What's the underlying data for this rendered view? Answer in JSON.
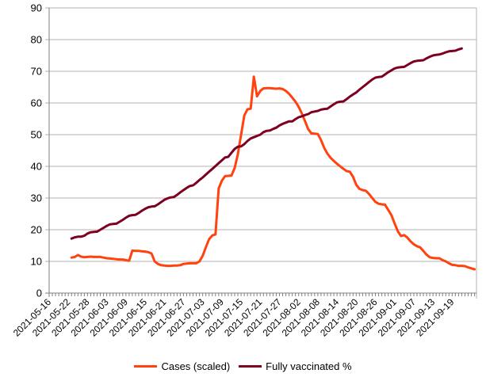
{
  "chart_data": {
    "type": "line",
    "title": "",
    "x_axis": {
      "tick_labels": [
        "2021-05-16",
        "2021-05-22",
        "2021-05-28",
        "2021-06-03",
        "2021-06-09",
        "2021-06-15",
        "2021-06-21",
        "2021-06-27",
        "2021-07-03",
        "2021-07-09",
        "2021-07-15",
        "2021-07-21",
        "2021-07-27",
        "2021-08-02",
        "2021-08-08",
        "2021-08-14",
        "2021-08-20",
        "2021-08-26",
        "2021-09-01",
        "2021-09-07",
        "2021-09-13",
        "2021-09-19"
      ],
      "label_step_days": 6,
      "minor_ticks_daily": true,
      "day_range": [
        0,
        133.6
      ]
    },
    "y_axis": {
      "min": 0,
      "max": 90,
      "step": 10,
      "tick_labels": [
        "0",
        "10",
        "20",
        "30",
        "40",
        "50",
        "60",
        "70",
        "80",
        "90"
      ]
    },
    "grid": true,
    "legend": {
      "position": "bottom"
    },
    "colors": {
      "cases": "#FF420E",
      "vaccinated": "#7E0021",
      "gridline": "#b3b3b3",
      "axis": "#808080",
      "text": "#000000",
      "background": "#ffffff"
    },
    "series": [
      {
        "name": "Cases (scaled)",
        "color": "#FF420E",
        "start_day": 7,
        "step_days": 1,
        "values": [
          11.2,
          11.4,
          12.0,
          11.5,
          11.3,
          11.4,
          11.5,
          11.4,
          11.4,
          11.4,
          11.2,
          11.0,
          10.9,
          10.8,
          10.7,
          10.6,
          10.6,
          10.4,
          10.2,
          13.4,
          13.3,
          13.3,
          13.2,
          13.1,
          12.9,
          12.5,
          10.0,
          9.2,
          8.8,
          8.7,
          8.6,
          8.6,
          8.7,
          8.7,
          8.8,
          9.2,
          9.3,
          9.4,
          9.4,
          9.4,
          10.0,
          11.8,
          14.5,
          17.0,
          18.2,
          18.5,
          33.0,
          35.5,
          36.9,
          37.0,
          37.1,
          39.5,
          43.8,
          50.0,
          56.0,
          58.0,
          58.2,
          68.3,
          62.1,
          63.8,
          64.6,
          64.7,
          64.7,
          64.6,
          64.5,
          64.6,
          64.4,
          63.8,
          62.9,
          61.7,
          60.4,
          58.8,
          56.7,
          54.2,
          51.7,
          50.4,
          50.3,
          50.2,
          48.3,
          45.8,
          44.0,
          42.7,
          41.7,
          40.8,
          40.0,
          39.2,
          38.5,
          38.3,
          36.7,
          34.2,
          32.9,
          32.5,
          32.3,
          31.3,
          30.0,
          28.8,
          28.2,
          28.0,
          27.9,
          26.3,
          24.6,
          22.0,
          19.5,
          18.0,
          18.3,
          17.5,
          16.3,
          15.4,
          14.8,
          14.4,
          13.3,
          12.1,
          11.3,
          11.1,
          11.0,
          11.0,
          10.4,
          10.0,
          9.4,
          8.9,
          8.8,
          8.6,
          8.6,
          8.5,
          8.1,
          7.8,
          7.5
        ]
      },
      {
        "name": "Fully vaccinated %",
        "color": "#7E0021",
        "start_day": 7,
        "step_days": 1,
        "values": [
          17.2,
          17.6,
          17.8,
          17.8,
          18.1,
          18.8,
          19.2,
          19.3,
          19.4,
          20.0,
          20.6,
          21.2,
          21.7,
          21.8,
          21.9,
          22.5,
          23.1,
          23.8,
          24.4,
          24.6,
          24.7,
          25.3,
          26.0,
          26.6,
          27.1,
          27.3,
          27.4,
          28.0,
          28.7,
          29.4,
          29.9,
          30.2,
          30.3,
          31.0,
          31.8,
          32.5,
          33.2,
          33.8,
          34.0,
          34.8,
          35.7,
          36.5,
          37.4,
          38.3,
          39.2,
          40.1,
          41.0,
          41.9,
          42.8,
          43.0,
          44.3,
          45.5,
          46.2,
          46.3,
          47.0,
          48.0,
          48.8,
          49.2,
          49.6,
          50.0,
          50.8,
          51.2,
          51.3,
          51.8,
          52.2,
          52.9,
          53.4,
          53.8,
          54.2,
          54.2,
          54.9,
          55.5,
          55.8,
          56.2,
          56.5,
          57.1,
          57.3,
          57.5,
          57.9,
          58.1,
          58.2,
          58.9,
          59.6,
          60.2,
          60.4,
          60.5,
          61.2,
          62.0,
          62.7,
          63.3,
          64.2,
          65.0,
          65.8,
          66.6,
          67.4,
          68.0,
          68.2,
          68.3,
          69.0,
          69.7,
          70.3,
          70.9,
          71.2,
          71.3,
          71.4,
          72.0,
          72.6,
          73.1,
          73.3,
          73.4,
          73.5,
          74.1,
          74.6,
          75.0,
          75.2,
          75.3,
          75.6,
          76.0,
          76.3,
          76.4,
          76.5,
          76.9,
          77.2
        ]
      }
    ]
  }
}
